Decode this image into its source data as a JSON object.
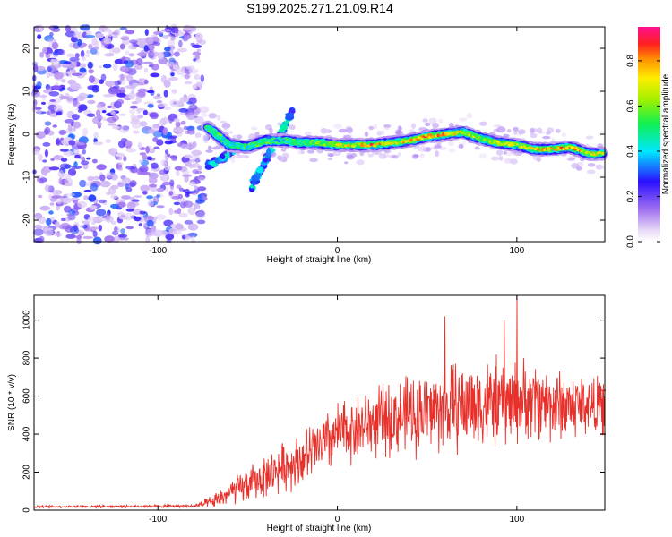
{
  "title": "S199.2025.271.21.09.R14",
  "colors": {
    "signal": "#e8302a",
    "background": "#ffffff"
  },
  "chart_data": [
    {
      "type": "heatmap",
      "name": "spectrogram",
      "xlabel": "Height of straight line (km)",
      "ylabel": "Frequency (Hz)",
      "xlim": [
        -169,
        149
      ],
      "ylim": [
        -25,
        25
      ],
      "xticks": [
        -100,
        0,
        100
      ],
      "yticks": [
        -20,
        -10,
        0,
        10,
        20
      ],
      "colorbar": {
        "label": "Normalized spectral amplitude",
        "range": [
          0,
          0.95
        ],
        "ticks": [
          0.0,
          0.2,
          0.4,
          0.6,
          0.8
        ],
        "colormap": "rainbow (white-violet-blue-cyan-green-yellow-red-magenta)"
      },
      "noise_region_x": [
        -169,
        -75
      ],
      "ridge": {
        "x": [
          -72,
          -60,
          -50,
          -40,
          -30,
          -20,
          -10,
          0,
          10,
          20,
          30,
          40,
          50,
          60,
          70,
          80,
          90,
          100,
          110,
          120,
          130,
          140,
          148
        ],
        "freq": [
          1.5,
          -2.5,
          -3.0,
          -1.5,
          -1.5,
          -2.0,
          -2.0,
          -2.5,
          -2.5,
          -2.5,
          -2.0,
          -1.5,
          -0.5,
          0.0,
          0.5,
          -1.0,
          -2.0,
          -2.5,
          -3.5,
          -3.5,
          -3.0,
          -4.5,
          -4.5
        ],
        "amplitude": [
          0.6,
          0.5,
          0.5,
          0.5,
          0.45,
          0.6,
          0.65,
          0.75,
          0.85,
          0.9,
          0.8,
          0.85,
          0.9,
          0.95,
          0.8,
          0.7,
          0.75,
          0.8,
          0.9,
          0.85,
          0.9,
          0.85,
          0.8
        ]
      },
      "branches": [
        {
          "x": [
            -72,
            -62,
            -55
          ],
          "freq": [
            -7.5,
            -5.0,
            -2.5
          ]
        },
        {
          "x": [
            -48,
            -40,
            -32,
            -25
          ],
          "freq": [
            -12.5,
            -6.0,
            0.0,
            5.5
          ]
        }
      ]
    },
    {
      "type": "line",
      "name": "snr",
      "xlabel": "Height of straight line (km)",
      "ylabel": "SNR (10 * v/v)",
      "xlim": [
        -169,
        149
      ],
      "ylim": [
        0,
        1130
      ],
      "xticks": [
        -100,
        0,
        100
      ],
      "yticks": [
        0,
        200,
        400,
        600,
        800,
        1000
      ],
      "envelope": {
        "x": [
          -169,
          -120,
          -80,
          -70,
          -60,
          -50,
          -40,
          -30,
          -20,
          -10,
          0,
          10,
          20,
          30,
          40,
          50,
          60,
          70,
          80,
          90,
          100,
          110,
          120,
          130,
          140,
          149
        ],
        "mean": [
          18,
          20,
          22,
          40,
          90,
          130,
          180,
          230,
          270,
          330,
          400,
          430,
          460,
          480,
          500,
          520,
          540,
          550,
          560,
          560,
          570,
          580,
          560,
          550,
          560,
          540
        ],
        "spread": [
          8,
          8,
          10,
          40,
          80,
          110,
          130,
          150,
          170,
          200,
          200,
          210,
          220,
          230,
          250,
          260,
          280,
          280,
          280,
          280,
          260,
          250,
          240,
          220,
          200,
          160
        ]
      },
      "peaks": [
        {
          "x": 100,
          "y": 1130
        },
        {
          "x": 60,
          "y": 1020
        },
        {
          "x": 93,
          "y": 1000
        }
      ]
    }
  ]
}
